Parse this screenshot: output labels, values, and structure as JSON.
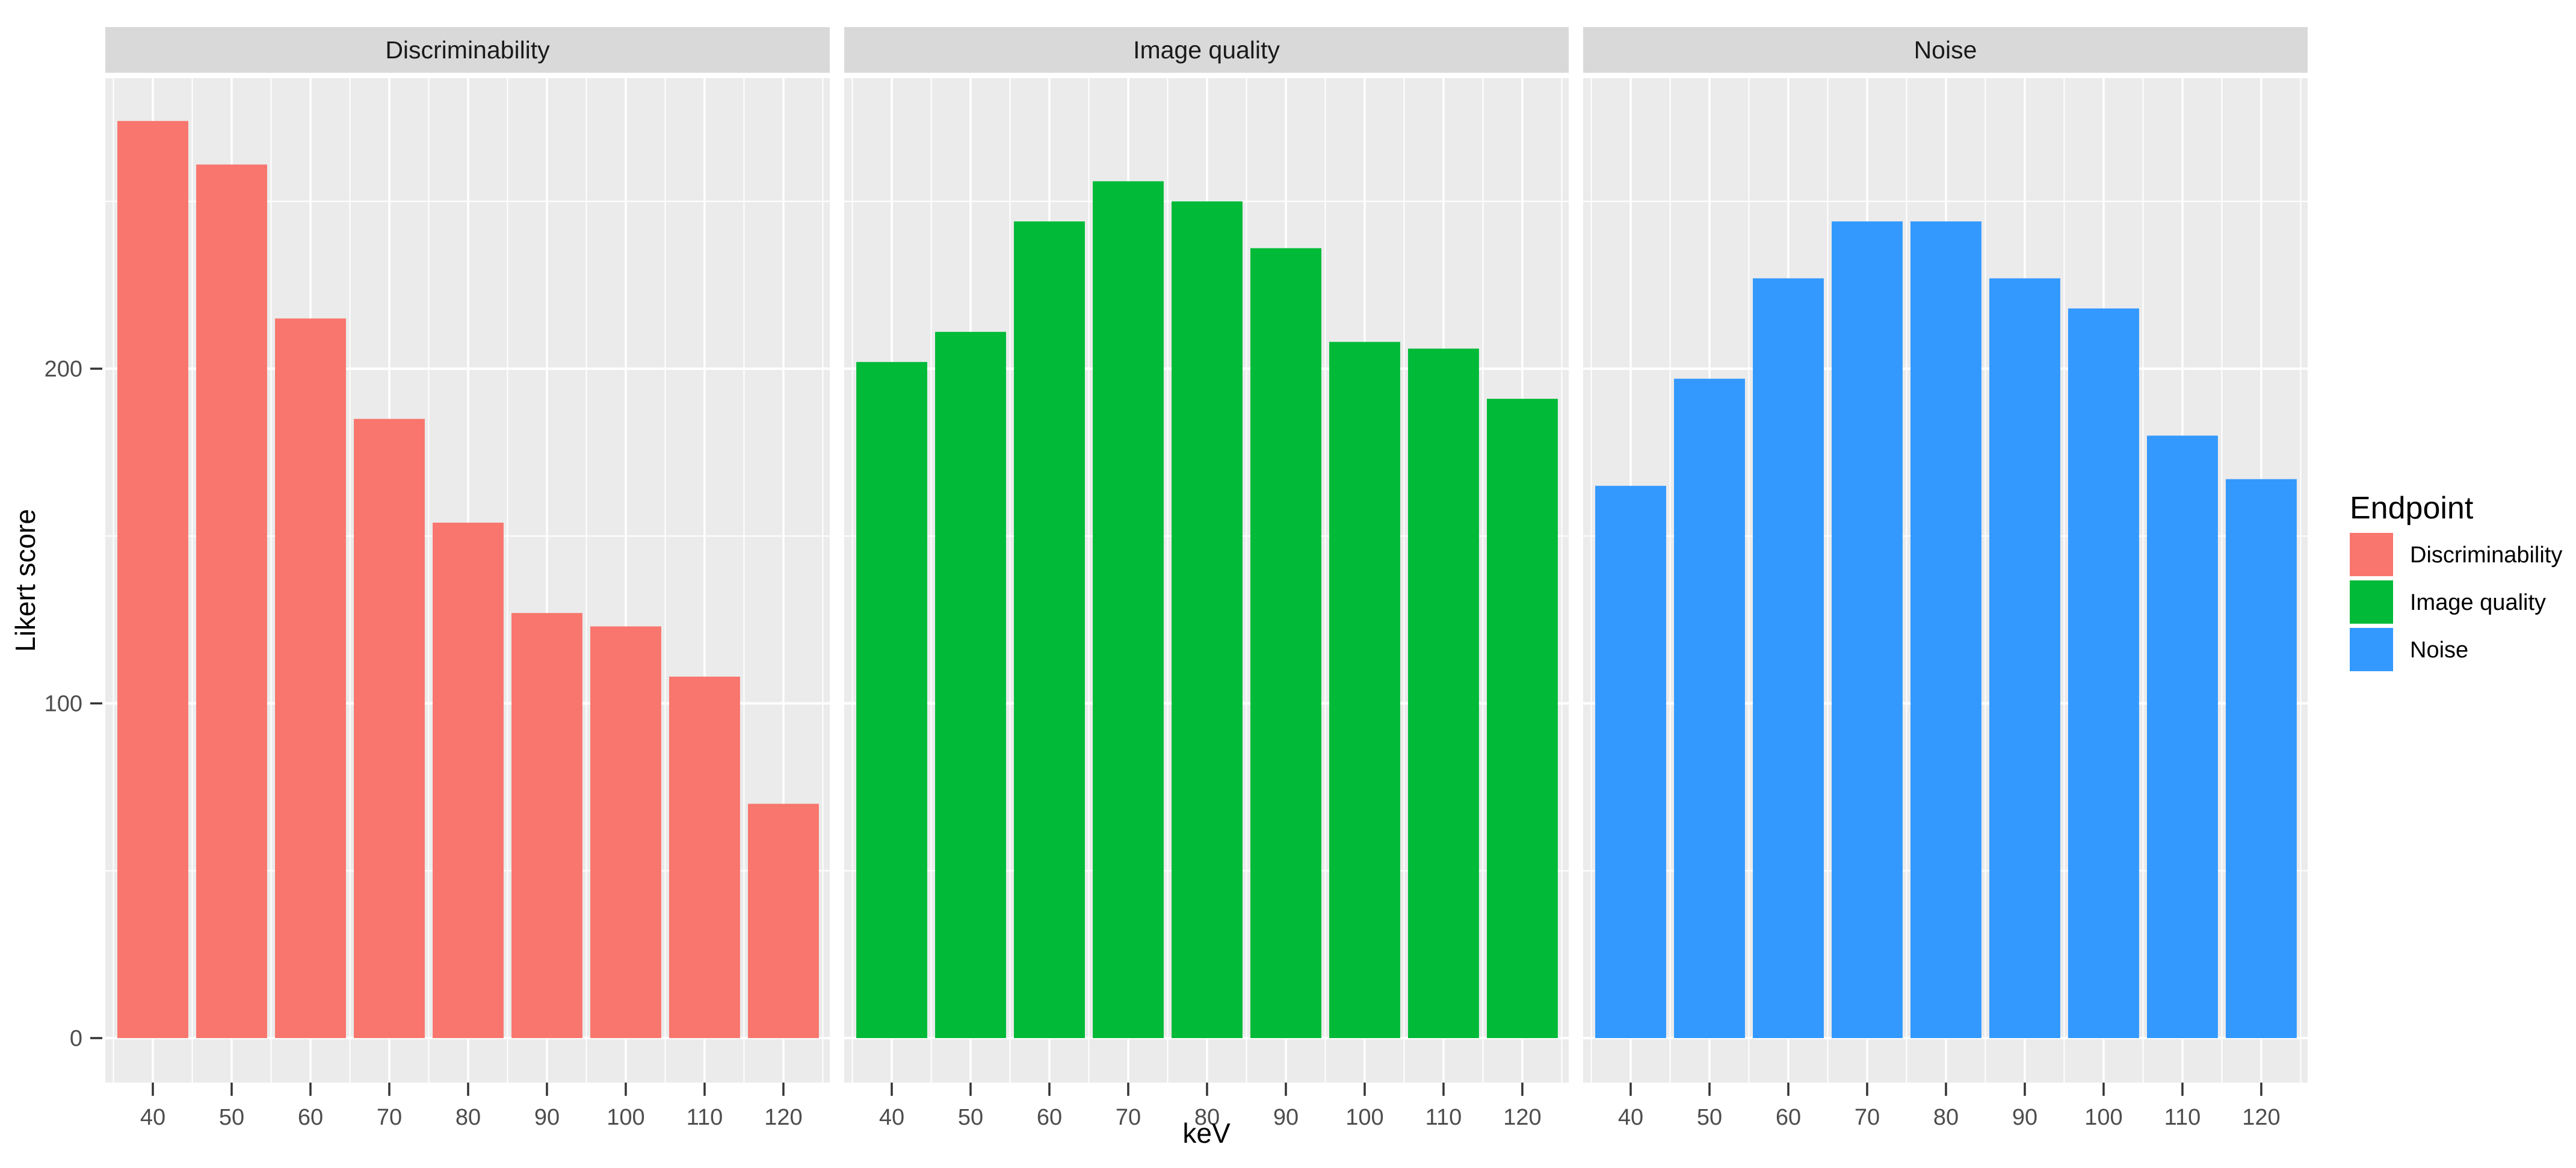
{
  "chart_data": {
    "type": "bar",
    "facet_variable": "Endpoint",
    "x": [
      40,
      50,
      60,
      70,
      80,
      90,
      100,
      110,
      120
    ],
    "x_tick_labels": [
      "40",
      "50",
      "60",
      "70",
      "80",
      "90",
      "100",
      "110",
      "120"
    ],
    "xlabel": "keV",
    "ylabel": "Likert score",
    "ylim": [
      0,
      287
    ],
    "yticks": [
      0,
      100,
      200
    ],
    "ytick_labels": [
      "0",
      "100",
      "200"
    ],
    "yticks_minor": [
      50,
      150,
      250
    ],
    "grid": "on",
    "legend_position": "right",
    "facets": [
      {
        "title": "Discriminability",
        "color": "#F8766D",
        "values": [
          274,
          261,
          215,
          185,
          154,
          127,
          123,
          108,
          70
        ]
      },
      {
        "title": "Image quality",
        "color": "#00BA38",
        "values": [
          202,
          211,
          244,
          256,
          250,
          236,
          208,
          206,
          191
        ]
      },
      {
        "title": "Noise",
        "color": "#3399FF",
        "values": [
          165,
          197,
          227,
          244,
          244,
          227,
          218,
          180,
          167
        ]
      }
    ],
    "legend": {
      "title": "Endpoint",
      "items": [
        {
          "label": "Discriminability",
          "color": "#F8766D"
        },
        {
          "label": "Image quality",
          "color": "#00BA38"
        },
        {
          "label": "Noise",
          "color": "#3399FF"
        }
      ]
    }
  },
  "style": {
    "panel_background": "#EBEBEB",
    "strip_background": "#D9D9D9",
    "grid_color": "#FFFFFF",
    "tick_mark_color": "#333333",
    "tick_label_color": "#4D4D4D",
    "strip_text_color": "#1A1A1A",
    "axis_title_color": "#000000",
    "legend_text_color": "#000000",
    "figure_background": "#FFFFFF"
  }
}
